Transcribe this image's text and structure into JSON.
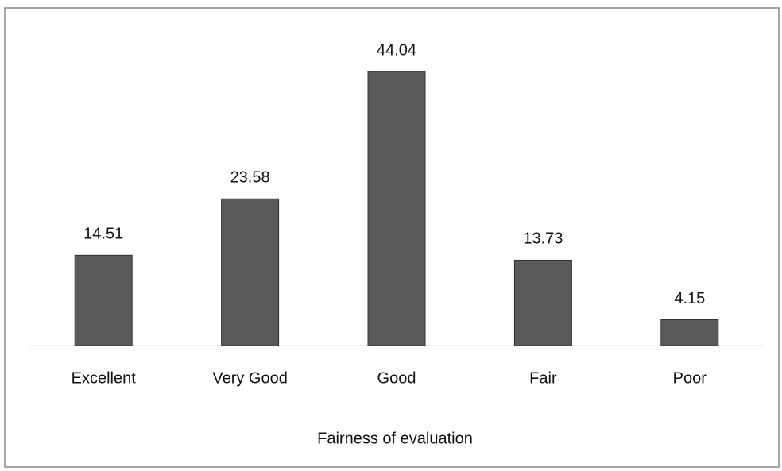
{
  "chart_data": {
    "type": "bar",
    "categories": [
      "Excellent",
      "Very Good",
      "Good",
      "Fair",
      "Poor"
    ],
    "values": [
      14.51,
      23.58,
      44.04,
      13.73,
      4.15
    ],
    "color": "#5a5a5a",
    "x_label": "Fairness of evaluation"
  }
}
